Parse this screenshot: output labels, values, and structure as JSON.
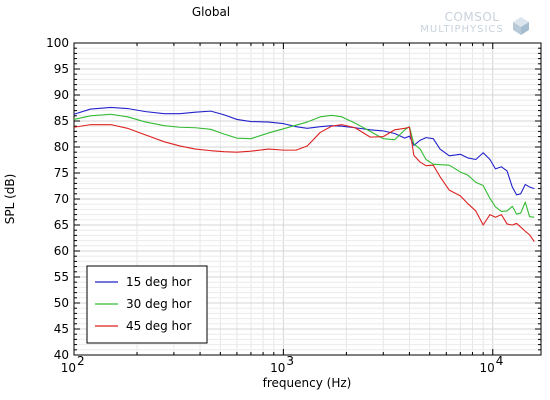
{
  "watermark": {
    "line1": "COMSOL",
    "line2": "MULTIPHYSICS"
  },
  "chart_data": {
    "type": "line",
    "title": "Global",
    "xlabel": "frequency (Hz)",
    "ylabel": "SPL (dB)",
    "x_scale": "log",
    "xlim": [
      100,
      17000
    ],
    "ylim": [
      40,
      100
    ],
    "x_ticks": [
      {
        "value": 100,
        "base": "10",
        "exp": "2"
      },
      {
        "value": 1000,
        "base": "10",
        "exp": "3"
      },
      {
        "value": 10000,
        "base": "10",
        "exp": "4"
      }
    ],
    "y_ticks": [
      "40",
      "45",
      "50",
      "55",
      "60",
      "65",
      "70",
      "75",
      "80",
      "85",
      "90",
      "95",
      "100"
    ],
    "grid": true,
    "legend_position": "bottom-left",
    "series": [
      {
        "name": "15 deg hor",
        "color": "#2222cc",
        "x": [
          100,
          120,
          150,
          180,
          220,
          270,
          320,
          380,
          450,
          520,
          600,
          700,
          850,
          1000,
          1150,
          1300,
          1500,
          1700,
          1900,
          2200,
          2600,
          3000,
          3400,
          3800,
          4000,
          4200,
          4500,
          4800,
          5200,
          5600,
          6200,
          7000,
          7600,
          8300,
          9000,
          9700,
          10300,
          11000,
          11700,
          12400,
          13000,
          13600,
          14300,
          15000,
          15800
        ],
        "y": [
          86.3,
          87.3,
          87.6,
          87.4,
          86.8,
          86.4,
          86.4,
          86.7,
          86.9,
          86.2,
          85.3,
          84.9,
          84.8,
          84.5,
          83.9,
          83.6,
          83.9,
          84.1,
          84.0,
          83.7,
          83.3,
          83.1,
          82.6,
          81.7,
          82.1,
          80.3,
          81.3,
          81.8,
          81.6,
          79.6,
          78.3,
          78.6,
          77.9,
          77.6,
          78.9,
          77.6,
          75.8,
          76.2,
          75.4,
          72.3,
          70.8,
          71.0,
          72.8,
          72.3,
          72.0
        ]
      },
      {
        "name": "30 deg hor",
        "color": "#33bb33",
        "x": [
          100,
          120,
          150,
          180,
          220,
          270,
          320,
          380,
          450,
          520,
          600,
          700,
          850,
          1000,
          1150,
          1300,
          1500,
          1700,
          1900,
          2200,
          2600,
          3000,
          3400,
          3800,
          4000,
          4200,
          4500,
          4800,
          5200,
          5600,
          6200,
          7000,
          7600,
          8300,
          9000,
          9700,
          10300,
          11000,
          11700,
          12400,
          13000,
          13600,
          14300,
          15000,
          15800
        ],
        "y": [
          85.3,
          86.0,
          86.3,
          85.8,
          84.8,
          84.1,
          83.8,
          83.7,
          83.4,
          82.5,
          81.7,
          81.6,
          82.7,
          83.5,
          84.2,
          84.8,
          85.8,
          86.1,
          85.8,
          84.6,
          83.0,
          81.6,
          81.4,
          83.3,
          83.9,
          80.6,
          79.6,
          77.6,
          76.7,
          76.6,
          76.5,
          75.2,
          74.6,
          73.2,
          72.6,
          70.1,
          68.5,
          67.6,
          67.7,
          68.6,
          67.1,
          67.3,
          69.4,
          66.6,
          66.5
        ]
      },
      {
        "name": "45 deg hor",
        "color": "#dd2222",
        "x": [
          100,
          120,
          150,
          180,
          220,
          270,
          320,
          380,
          450,
          520,
          600,
          700,
          850,
          1000,
          1150,
          1300,
          1500,
          1700,
          1900,
          2200,
          2600,
          3000,
          3400,
          3800,
          4000,
          4200,
          4500,
          4800,
          5200,
          5600,
          6200,
          7000,
          7600,
          8300,
          9000,
          9700,
          10300,
          11000,
          11700,
          12400,
          13000,
          13600,
          14300,
          15000,
          15800
        ],
        "y": [
          83.8,
          84.3,
          84.3,
          83.6,
          82.3,
          81.0,
          80.2,
          79.6,
          79.3,
          79.1,
          79.0,
          79.2,
          79.6,
          79.4,
          79.4,
          80.2,
          82.8,
          84.0,
          84.3,
          83.7,
          81.9,
          82.0,
          83.3,
          83.6,
          83.8,
          78.4,
          77.1,
          76.4,
          76.5,
          74.3,
          71.7,
          70.6,
          69.1,
          67.7,
          65.0,
          67.0,
          66.5,
          67.0,
          65.2,
          65.0,
          65.3,
          64.6,
          63.8,
          63.1,
          61.8
        ]
      }
    ]
  }
}
